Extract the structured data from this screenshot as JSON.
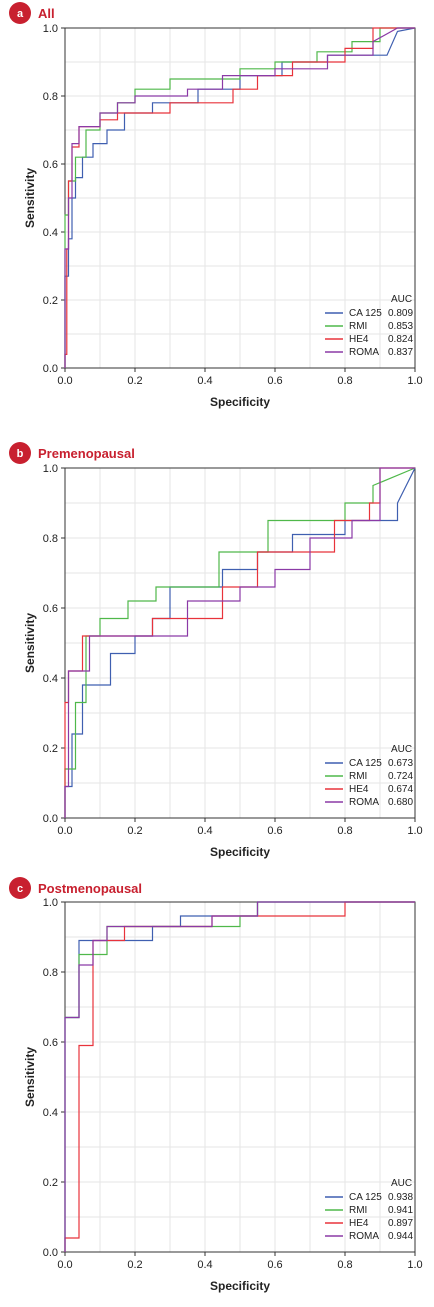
{
  "colors": {
    "accent": "#c8202f",
    "grid": "#e6e6e6",
    "axis": "#333333",
    "series": {
      "CA 125": "#3f5fb0",
      "RMI": "#4fb84a",
      "HE4": "#e8333b",
      "ROMA": "#8b3aa6"
    }
  },
  "chart_data": [
    {
      "type": "line",
      "panel_letter": "a",
      "title": "All",
      "xlabel": "Specificity",
      "ylabel": "Sensitivity",
      "xlim": [
        0,
        1
      ],
      "ylim": [
        0,
        1
      ],
      "xticks": [
        "0.0",
        "0.2",
        "0.4",
        "0.6",
        "0.8",
        "1.0"
      ],
      "yticks": [
        "0.0",
        "0.2",
        "0.4",
        "0.6",
        "0.8",
        "1.0"
      ],
      "grid": true,
      "legend": {
        "position": "bottom-right",
        "header": "AUC"
      },
      "series": [
        {
          "name": "CA 125",
          "auc": "0.809",
          "x": [
            0,
            0,
            0.01,
            0.01,
            0.02,
            0.02,
            0.03,
            0.03,
            0.05,
            0.05,
            0.08,
            0.08,
            0.12,
            0.12,
            0.17,
            0.17,
            0.25,
            0.25,
            0.38,
            0.38,
            0.5,
            0.5,
            0.62,
            0.62,
            0.75,
            0.75,
            0.85,
            0.92,
            0.95,
            1.0
          ],
          "y": [
            0,
            0.27,
            0.27,
            0.38,
            0.38,
            0.5,
            0.5,
            0.56,
            0.56,
            0.62,
            0.62,
            0.66,
            0.66,
            0.7,
            0.7,
            0.75,
            0.75,
            0.78,
            0.78,
            0.82,
            0.82,
            0.86,
            0.86,
            0.9,
            0.9,
            0.92,
            0.92,
            0.92,
            0.99,
            1.0
          ]
        },
        {
          "name": "RMI",
          "auc": "0.853",
          "x": [
            0,
            0,
            0.01,
            0.01,
            0.03,
            0.03,
            0.06,
            0.06,
            0.1,
            0.1,
            0.15,
            0.15,
            0.2,
            0.2,
            0.3,
            0.3,
            0.5,
            0.5,
            0.6,
            0.6,
            0.72,
            0.72,
            0.82,
            0.82,
            0.9,
            0.9,
            1.0
          ],
          "y": [
            0,
            0.45,
            0.45,
            0.55,
            0.55,
            0.62,
            0.62,
            0.7,
            0.7,
            0.75,
            0.75,
            0.78,
            0.78,
            0.82,
            0.82,
            0.85,
            0.85,
            0.88,
            0.88,
            0.9,
            0.9,
            0.93,
            0.93,
            0.96,
            0.96,
            1.0,
            1.0
          ]
        },
        {
          "name": "HE4",
          "auc": "0.824",
          "x": [
            0,
            0,
            0.005,
            0.005,
            0.01,
            0.01,
            0.02,
            0.02,
            0.04,
            0.04,
            0.1,
            0.1,
            0.15,
            0.15,
            0.3,
            0.3,
            0.48,
            0.48,
            0.55,
            0.55,
            0.65,
            0.65,
            0.8,
            0.8,
            0.88,
            0.88,
            1.0
          ],
          "y": [
            0,
            0.04,
            0.04,
            0.35,
            0.35,
            0.55,
            0.55,
            0.65,
            0.65,
            0.71,
            0.71,
            0.73,
            0.73,
            0.75,
            0.75,
            0.78,
            0.78,
            0.82,
            0.82,
            0.86,
            0.86,
            0.9,
            0.9,
            0.94,
            0.94,
            1.0,
            1.0
          ]
        },
        {
          "name": "ROMA",
          "auc": "0.837",
          "x": [
            0,
            0,
            0.01,
            0.01,
            0.02,
            0.02,
            0.04,
            0.04,
            0.1,
            0.1,
            0.15,
            0.15,
            0.2,
            0.2,
            0.35,
            0.35,
            0.45,
            0.45,
            0.6,
            0.6,
            0.75,
            0.75,
            0.88,
            0.88,
            0.95,
            1.0
          ],
          "y": [
            0,
            0.35,
            0.35,
            0.5,
            0.5,
            0.66,
            0.66,
            0.71,
            0.71,
            0.75,
            0.75,
            0.78,
            0.78,
            0.8,
            0.8,
            0.82,
            0.82,
            0.86,
            0.86,
            0.88,
            0.88,
            0.92,
            0.92,
            0.96,
            1.0,
            1.0
          ]
        }
      ]
    },
    {
      "type": "line",
      "panel_letter": "b",
      "title": "Premenopausal",
      "xlabel": "Specificity",
      "ylabel": "Sensitivity",
      "xlim": [
        0,
        1
      ],
      "ylim": [
        0,
        1
      ],
      "xticks": [
        "0.0",
        "0.2",
        "0.4",
        "0.6",
        "0.8",
        "1.0"
      ],
      "yticks": [
        "0.0",
        "0.2",
        "0.4",
        "0.6",
        "0.8",
        "1.0"
      ],
      "grid": true,
      "legend": {
        "position": "bottom-right",
        "header": "AUC"
      },
      "series": [
        {
          "name": "CA 125",
          "auc": "0.673",
          "x": [
            0,
            0,
            0.02,
            0.02,
            0.05,
            0.05,
            0.08,
            0.08,
            0.13,
            0.13,
            0.2,
            0.2,
            0.25,
            0.25,
            0.3,
            0.3,
            0.45,
            0.45,
            0.55,
            0.55,
            0.65,
            0.65,
            0.8,
            0.8,
            0.95,
            0.95,
            1.0
          ],
          "y": [
            0,
            0.09,
            0.09,
            0.24,
            0.24,
            0.38,
            0.38,
            0.38,
            0.38,
            0.47,
            0.47,
            0.52,
            0.52,
            0.57,
            0.57,
            0.66,
            0.66,
            0.71,
            0.71,
            0.76,
            0.76,
            0.81,
            0.81,
            0.85,
            0.85,
            0.9,
            1.0
          ]
        },
        {
          "name": "RMI",
          "auc": "0.724",
          "x": [
            0,
            0,
            0.03,
            0.03,
            0.06,
            0.06,
            0.1,
            0.1,
            0.18,
            0.18,
            0.26,
            0.26,
            0.44,
            0.44,
            0.58,
            0.58,
            0.68,
            0.68,
            0.8,
            0.8,
            0.88,
            0.88,
            1.0
          ],
          "y": [
            0,
            0.14,
            0.14,
            0.33,
            0.33,
            0.52,
            0.52,
            0.57,
            0.57,
            0.62,
            0.62,
            0.66,
            0.66,
            0.76,
            0.76,
            0.85,
            0.85,
            0.85,
            0.85,
            0.9,
            0.9,
            0.95,
            1.0
          ]
        },
        {
          "name": "HE4",
          "auc": "0.674",
          "x": [
            0,
            0,
            0.01,
            0.01,
            0.05,
            0.05,
            0.08,
            0.08,
            0.15,
            0.15,
            0.25,
            0.25,
            0.45,
            0.45,
            0.55,
            0.55,
            0.62,
            0.62,
            0.77,
            0.77,
            0.87,
            0.87,
            0.9,
            0.9,
            1.0
          ],
          "y": [
            0,
            0.33,
            0.33,
            0.42,
            0.42,
            0.52,
            0.52,
            0.52,
            0.52,
            0.52,
            0.52,
            0.57,
            0.57,
            0.66,
            0.66,
            0.76,
            0.76,
            0.76,
            0.76,
            0.85,
            0.85,
            0.9,
            0.9,
            1.0,
            1.0
          ]
        },
        {
          "name": "ROMA",
          "auc": "0.680",
          "x": [
            0,
            0,
            0.01,
            0.01,
            0.07,
            0.07,
            0.2,
            0.2,
            0.35,
            0.35,
            0.5,
            0.5,
            0.6,
            0.6,
            0.7,
            0.7,
            0.82,
            0.82,
            0.9,
            0.9,
            0.96,
            0.96,
            1.0
          ],
          "y": [
            0,
            0.09,
            0.09,
            0.42,
            0.42,
            0.52,
            0.52,
            0.52,
            0.52,
            0.62,
            0.62,
            0.66,
            0.66,
            0.71,
            0.71,
            0.8,
            0.8,
            0.85,
            0.85,
            1.0,
            1.0,
            1.0,
            1.0
          ]
        }
      ]
    },
    {
      "type": "line",
      "panel_letter": "c",
      "title": "Postmenopausal",
      "xlabel": "Specificity",
      "ylabel": "Sensitivity",
      "xlim": [
        0,
        1
      ],
      "ylim": [
        0,
        1
      ],
      "xticks": [
        "0.0",
        "0.2",
        "0.4",
        "0.6",
        "0.8",
        "1.0"
      ],
      "yticks": [
        "0.0",
        "0.2",
        "0.4",
        "0.6",
        "0.8",
        "1.0"
      ],
      "grid": true,
      "legend": {
        "position": "bottom-right",
        "header": "AUC"
      },
      "series": [
        {
          "name": "CA 125",
          "auc": "0.938",
          "x": [
            0,
            0,
            0.04,
            0.04,
            0.15,
            0.15,
            0.25,
            0.25,
            0.33,
            0.33,
            0.5,
            0.5,
            0.55,
            0.55,
            0.88,
            0.88,
            1.0
          ],
          "y": [
            0,
            0.67,
            0.67,
            0.89,
            0.89,
            0.89,
            0.89,
            0.93,
            0.93,
            0.96,
            0.96,
            0.96,
            0.96,
            1.0,
            1.0,
            1.0,
            1.0
          ]
        },
        {
          "name": "RMI",
          "auc": "0.941",
          "x": [
            0,
            0,
            0.04,
            0.04,
            0.12,
            0.12,
            0.25,
            0.25,
            0.5,
            0.5,
            0.55,
            0.55,
            1.0
          ],
          "y": [
            0,
            0.67,
            0.67,
            0.85,
            0.85,
            0.93,
            0.93,
            0.93,
            0.93,
            0.96,
            0.96,
            1.0,
            1.0
          ]
        },
        {
          "name": "HE4",
          "auc": "0.897",
          "x": [
            0,
            0,
            0.04,
            0.04,
            0.08,
            0.08,
            0.17,
            0.17,
            0.28,
            0.28,
            0.42,
            0.42,
            0.55,
            0.55,
            0.8,
            0.8,
            1.0
          ],
          "y": [
            0,
            0.04,
            0.04,
            0.59,
            0.59,
            0.89,
            0.89,
            0.93,
            0.93,
            0.93,
            0.93,
            0.96,
            0.96,
            0.96,
            0.96,
            1.0,
            1.0
          ]
        },
        {
          "name": "ROMA",
          "auc": "0.944",
          "x": [
            0,
            0,
            0.04,
            0.04,
            0.08,
            0.08,
            0.12,
            0.12,
            0.25,
            0.25,
            0.42,
            0.42,
            0.55,
            0.55,
            1.0
          ],
          "y": [
            0,
            0.67,
            0.67,
            0.82,
            0.82,
            0.89,
            0.89,
            0.93,
            0.93,
            0.93,
            0.93,
            0.96,
            0.96,
            1.0,
            1.0
          ]
        }
      ]
    }
  ]
}
